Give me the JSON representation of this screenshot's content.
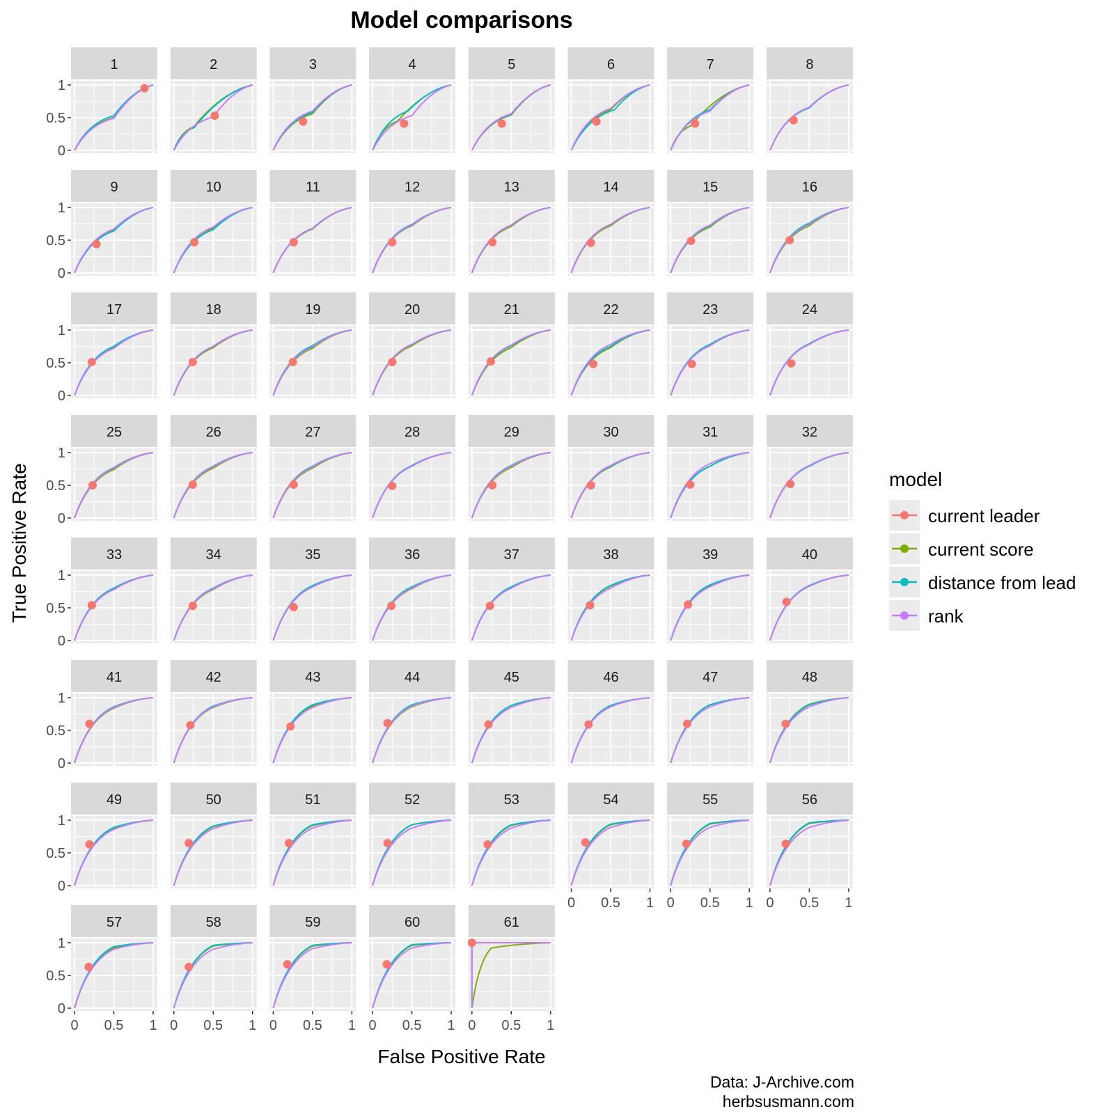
{
  "chart_data": {
    "type": "line",
    "title": "Model comparisons",
    "xlabel": "False Positive Rate",
    "ylabel": "True Positive Rate",
    "xlim": [
      0,
      1
    ],
    "ylim": [
      0,
      1
    ],
    "x_ticks": [
      "0",
      "0.5",
      "1"
    ],
    "y_ticks": [
      "0",
      "0.5",
      "1"
    ],
    "grid": true,
    "facet_columns": 8,
    "legend": {
      "title": "model",
      "position": "right",
      "entries": [
        {
          "label": "current leader",
          "color": "#F8766D",
          "marker": "point"
        },
        {
          "label": "current score",
          "color": "#7CAE00",
          "marker": "line"
        },
        {
          "label": "distance from lead",
          "color": "#00BFC4",
          "marker": "line"
        },
        {
          "label": "rank",
          "color": "#C77CFF",
          "marker": "line"
        }
      ]
    },
    "panels": [
      {
        "label": "1",
        "leader": [
          0.89,
          0.95
        ],
        "score": [
          0.5,
          0.5
        ],
        "dist": [
          0.5,
          0.53
        ],
        "rank": [
          0.5,
          0.49
        ]
      },
      {
        "label": "2",
        "leader": [
          0.52,
          0.53
        ],
        "score": [
          0.25,
          0.36
        ],
        "dist": [
          0.26,
          0.35
        ],
        "rank": [
          0.5,
          0.51
        ]
      },
      {
        "label": "3",
        "leader": [
          0.38,
          0.44
        ],
        "score": [
          0.5,
          0.56
        ],
        "dist": [
          0.5,
          0.58
        ],
        "rank": [
          0.5,
          0.6
        ]
      },
      {
        "label": "4",
        "leader": [
          0.4,
          0.41
        ],
        "score": [
          0.32,
          0.45
        ],
        "dist": [
          0.45,
          0.6
        ],
        "rank": [
          0.5,
          0.53
        ]
      },
      {
        "label": "5",
        "leader": [
          0.38,
          0.41
        ],
        "score": [
          0.5,
          0.54
        ],
        "dist": [
          0.5,
          0.55
        ],
        "rank": [
          0.5,
          0.56
        ]
      },
      {
        "label": "6",
        "leader": [
          0.32,
          0.44
        ],
        "score": [
          0.5,
          0.62
        ],
        "dist": [
          0.55,
          0.62
        ],
        "rank": [
          0.5,
          0.64
        ]
      },
      {
        "label": "7",
        "leader": [
          0.31,
          0.41
        ],
        "score": [
          0.25,
          0.37
        ],
        "dist": [
          0.5,
          0.62
        ],
        "rank": [
          0.5,
          0.6
        ]
      },
      {
        "label": "8",
        "leader": [
          0.3,
          0.46
        ],
        "score": [
          0.5,
          0.66
        ],
        "dist": [
          0.5,
          0.65
        ],
        "rank": [
          0.5,
          0.66
        ]
      },
      {
        "label": "9",
        "leader": [
          0.28,
          0.44
        ],
        "score": [
          0.5,
          0.66
        ],
        "dist": [
          0.5,
          0.64
        ],
        "rank": [
          0.5,
          0.67
        ]
      },
      {
        "label": "10",
        "leader": [
          0.26,
          0.47
        ],
        "score": [
          0.5,
          0.68
        ],
        "dist": [
          0.5,
          0.66
        ],
        "rank": [
          0.5,
          0.7
        ]
      },
      {
        "label": "11",
        "leader": [
          0.26,
          0.47
        ],
        "score": [
          0.5,
          0.67
        ],
        "dist": [
          0.5,
          0.68
        ],
        "rank": [
          0.5,
          0.68
        ]
      },
      {
        "label": "12",
        "leader": [
          0.25,
          0.47
        ],
        "score": [
          0.5,
          0.72
        ],
        "dist": [
          0.5,
          0.74
        ],
        "rank": [
          0.5,
          0.73
        ]
      },
      {
        "label": "13",
        "leader": [
          0.26,
          0.47
        ],
        "score": [
          0.5,
          0.71
        ],
        "dist": [
          0.5,
          0.73
        ],
        "rank": [
          0.5,
          0.73
        ]
      },
      {
        "label": "14",
        "leader": [
          0.25,
          0.46
        ],
        "score": [
          0.5,
          0.72
        ],
        "dist": [
          0.5,
          0.74
        ],
        "rank": [
          0.5,
          0.74
        ]
      },
      {
        "label": "15",
        "leader": [
          0.26,
          0.49
        ],
        "score": [
          0.5,
          0.7
        ],
        "dist": [
          0.5,
          0.72
        ],
        "rank": [
          0.5,
          0.73
        ]
      },
      {
        "label": "16",
        "leader": [
          0.25,
          0.5
        ],
        "score": [
          0.5,
          0.72
        ],
        "dist": [
          0.5,
          0.76
        ],
        "rank": [
          0.5,
          0.74
        ]
      },
      {
        "label": "17",
        "leader": [
          0.22,
          0.51
        ],
        "score": [
          0.5,
          0.73
        ],
        "dist": [
          0.5,
          0.75
        ],
        "rank": [
          0.5,
          0.72
        ]
      },
      {
        "label": "18",
        "leader": [
          0.24,
          0.51
        ],
        "score": [
          0.5,
          0.73
        ],
        "dist": [
          0.5,
          0.75
        ],
        "rank": [
          0.5,
          0.75
        ]
      },
      {
        "label": "19",
        "leader": [
          0.25,
          0.51
        ],
        "score": [
          0.5,
          0.72
        ],
        "dist": [
          0.5,
          0.76
        ],
        "rank": [
          0.5,
          0.74
        ]
      },
      {
        "label": "20",
        "leader": [
          0.25,
          0.51
        ],
        "score": [
          0.5,
          0.76
        ],
        "dist": [
          0.5,
          0.78
        ],
        "rank": [
          0.5,
          0.78
        ]
      },
      {
        "label": "21",
        "leader": [
          0.24,
          0.52
        ],
        "score": [
          0.5,
          0.73
        ],
        "dist": [
          0.5,
          0.76
        ],
        "rank": [
          0.5,
          0.77
        ]
      },
      {
        "label": "22",
        "leader": [
          0.28,
          0.48
        ],
        "score": [
          0.5,
          0.73
        ],
        "dist": [
          0.5,
          0.75
        ],
        "rank": [
          0.5,
          0.78
        ]
      },
      {
        "label": "23",
        "leader": [
          0.27,
          0.48
        ],
        "score": [
          0.5,
          0.76
        ],
        "dist": [
          0.5,
          0.78
        ],
        "rank": [
          0.5,
          0.76
        ]
      },
      {
        "label": "24",
        "leader": [
          0.27,
          0.49
        ],
        "score": [
          0.5,
          0.78
        ],
        "dist": [
          0.5,
          0.79
        ],
        "rank": [
          0.5,
          0.78
        ]
      },
      {
        "label": "25",
        "leader": [
          0.23,
          0.5
        ],
        "score": [
          0.5,
          0.74
        ],
        "dist": [
          0.5,
          0.77
        ],
        "rank": [
          0.5,
          0.76
        ]
      },
      {
        "label": "26",
        "leader": [
          0.24,
          0.51
        ],
        "score": [
          0.5,
          0.76
        ],
        "dist": [
          0.5,
          0.79
        ],
        "rank": [
          0.5,
          0.78
        ]
      },
      {
        "label": "27",
        "leader": [
          0.26,
          0.51
        ],
        "score": [
          0.5,
          0.76
        ],
        "dist": [
          0.5,
          0.79
        ],
        "rank": [
          0.5,
          0.78
        ]
      },
      {
        "label": "28",
        "leader": [
          0.25,
          0.49
        ],
        "score": [
          0.5,
          0.79
        ],
        "dist": [
          0.5,
          0.8
        ],
        "rank": [
          0.5,
          0.79
        ]
      },
      {
        "label": "29",
        "leader": [
          0.26,
          0.5
        ],
        "score": [
          0.5,
          0.77
        ],
        "dist": [
          0.5,
          0.8
        ],
        "rank": [
          0.5,
          0.79
        ]
      },
      {
        "label": "30",
        "leader": [
          0.25,
          0.5
        ],
        "score": [
          0.5,
          0.78
        ],
        "dist": [
          0.5,
          0.79
        ],
        "rank": [
          0.5,
          0.8
        ]
      },
      {
        "label": "31",
        "leader": [
          0.25,
          0.51
        ],
        "score": [
          0.5,
          0.79
        ],
        "dist": [
          0.5,
          0.79
        ],
        "rank": [
          0.5,
          0.83
        ]
      },
      {
        "label": "32",
        "leader": [
          0.26,
          0.52
        ],
        "score": [
          0.5,
          0.8
        ],
        "dist": [
          0.5,
          0.79
        ],
        "rank": [
          0.5,
          0.8
        ]
      },
      {
        "label": "33",
        "leader": [
          0.22,
          0.54
        ],
        "score": [
          0.5,
          0.78
        ],
        "dist": [
          0.5,
          0.8
        ],
        "rank": [
          0.5,
          0.78
        ]
      },
      {
        "label": "34",
        "leader": [
          0.24,
          0.53
        ],
        "score": [
          0.5,
          0.78
        ],
        "dist": [
          0.5,
          0.8
        ],
        "rank": [
          0.5,
          0.79
        ]
      },
      {
        "label": "35",
        "leader": [
          0.26,
          0.51
        ],
        "score": [
          0.5,
          0.82
        ],
        "dist": [
          0.5,
          0.84
        ],
        "rank": [
          0.5,
          0.82
        ]
      },
      {
        "label": "36",
        "leader": [
          0.24,
          0.53
        ],
        "score": [
          0.5,
          0.79
        ],
        "dist": [
          0.5,
          0.82
        ],
        "rank": [
          0.5,
          0.8
        ]
      },
      {
        "label": "37",
        "leader": [
          0.23,
          0.53
        ],
        "score": [
          0.5,
          0.81
        ],
        "dist": [
          0.5,
          0.82
        ],
        "rank": [
          0.5,
          0.8
        ]
      },
      {
        "label": "38",
        "leader": [
          0.24,
          0.54
        ],
        "score": [
          0.5,
          0.83
        ],
        "dist": [
          0.5,
          0.84
        ],
        "rank": [
          0.5,
          0.8
        ]
      },
      {
        "label": "39",
        "leader": [
          0.22,
          0.55
        ],
        "score": [
          0.5,
          0.83
        ],
        "dist": [
          0.5,
          0.85
        ],
        "rank": [
          0.5,
          0.82
        ]
      },
      {
        "label": "40",
        "leader": [
          0.21,
          0.59
        ],
        "score": [
          0.5,
          0.83
        ],
        "dist": [
          0.5,
          0.84
        ],
        "rank": [
          0.5,
          0.83
        ]
      },
      {
        "label": "41",
        "leader": [
          0.19,
          0.6
        ],
        "score": [
          0.5,
          0.84
        ],
        "dist": [
          0.5,
          0.86
        ],
        "rank": [
          0.5,
          0.85
        ]
      },
      {
        "label": "42",
        "leader": [
          0.21,
          0.58
        ],
        "score": [
          0.5,
          0.85
        ],
        "dist": [
          0.5,
          0.87
        ],
        "rank": [
          0.5,
          0.86
        ]
      },
      {
        "label": "43",
        "leader": [
          0.22,
          0.56
        ],
        "score": [
          0.5,
          0.87
        ],
        "dist": [
          0.5,
          0.89
        ],
        "rank": [
          0.5,
          0.85
        ]
      },
      {
        "label": "44",
        "leader": [
          0.19,
          0.61
        ],
        "score": [
          0.5,
          0.86
        ],
        "dist": [
          0.5,
          0.89
        ],
        "rank": [
          0.5,
          0.87
        ]
      },
      {
        "label": "45",
        "leader": [
          0.21,
          0.59
        ],
        "score": [
          0.5,
          0.88
        ],
        "dist": [
          0.5,
          0.88
        ],
        "rank": [
          0.5,
          0.85
        ]
      },
      {
        "label": "46",
        "leader": [
          0.22,
          0.59
        ],
        "score": [
          0.5,
          0.87
        ],
        "dist": [
          0.5,
          0.88
        ],
        "rank": [
          0.5,
          0.86
        ]
      },
      {
        "label": "47",
        "leader": [
          0.21,
          0.6
        ],
        "score": [
          0.5,
          0.89
        ],
        "dist": [
          0.5,
          0.89
        ],
        "rank": [
          0.5,
          0.86
        ]
      },
      {
        "label": "48",
        "leader": [
          0.2,
          0.6
        ],
        "score": [
          0.5,
          0.9
        ],
        "dist": [
          0.5,
          0.89
        ],
        "rank": [
          0.5,
          0.86
        ]
      },
      {
        "label": "49",
        "leader": [
          0.19,
          0.63
        ],
        "score": [
          0.5,
          0.88
        ],
        "dist": [
          0.5,
          0.89
        ],
        "rank": [
          0.5,
          0.86
        ]
      },
      {
        "label": "50",
        "leader": [
          0.19,
          0.65
        ],
        "score": [
          0.5,
          0.9
        ],
        "dist": [
          0.5,
          0.91
        ],
        "rank": [
          0.5,
          0.87
        ]
      },
      {
        "label": "51",
        "leader": [
          0.2,
          0.65
        ],
        "score": [
          0.5,
          0.92
        ],
        "dist": [
          0.5,
          0.93
        ],
        "rank": [
          0.5,
          0.88
        ]
      },
      {
        "label": "52",
        "leader": [
          0.19,
          0.65
        ],
        "score": [
          0.5,
          0.93
        ],
        "dist": [
          0.5,
          0.93
        ],
        "rank": [
          0.5,
          0.88
        ]
      },
      {
        "label": "53",
        "leader": [
          0.2,
          0.63
        ],
        "score": [
          0.5,
          0.92
        ],
        "dist": [
          0.5,
          0.93
        ],
        "rank": [
          0.5,
          0.88
        ]
      },
      {
        "label": "54",
        "leader": [
          0.18,
          0.66
        ],
        "score": [
          0.5,
          0.93
        ],
        "dist": [
          0.5,
          0.94
        ],
        "rank": [
          0.5,
          0.89
        ]
      },
      {
        "label": "55",
        "leader": [
          0.2,
          0.64
        ],
        "score": [
          0.5,
          0.94
        ],
        "dist": [
          0.5,
          0.95
        ],
        "rank": [
          0.5,
          0.89
        ]
      },
      {
        "label": "56",
        "leader": [
          0.2,
          0.64
        ],
        "score": [
          0.5,
          0.95
        ],
        "dist": [
          0.5,
          0.96
        ],
        "rank": [
          0.5,
          0.89
        ]
      },
      {
        "label": "57",
        "leader": [
          0.18,
          0.63
        ],
        "score": [
          0.5,
          0.92
        ],
        "dist": [
          0.5,
          0.94
        ],
        "rank": [
          0.5,
          0.9
        ]
      },
      {
        "label": "58",
        "leader": [
          0.19,
          0.63
        ],
        "score": [
          0.5,
          0.95
        ],
        "dist": [
          0.5,
          0.96
        ],
        "rank": [
          0.5,
          0.9
        ]
      },
      {
        "label": "59",
        "leader": [
          0.18,
          0.67
        ],
        "score": [
          0.5,
          0.95
        ],
        "dist": [
          0.5,
          0.96
        ],
        "rank": [
          0.5,
          0.91
        ]
      },
      {
        "label": "60",
        "leader": [
          0.18,
          0.67
        ],
        "score": [
          0.5,
          0.96
        ],
        "dist": [
          0.5,
          0.97
        ],
        "rank": [
          0.5,
          0.92
        ]
      },
      {
        "label": "61",
        "leader": [
          0.0,
          1.0
        ],
        "score": [
          0.25,
          0.92
        ],
        "dist": [
          0.0,
          1.0
        ],
        "rank": [
          0.0,
          1.0
        ]
      }
    ],
    "bottom_axis_panels": [
      "54",
      "55",
      "56",
      "57",
      "58",
      "59",
      "60",
      "61"
    ]
  },
  "caption": {
    "line1": "Data: J-Archive.com",
    "line2": "herbsusmann.com"
  },
  "colors": {
    "panel_background": "#EBEBEB",
    "strip_background": "#D9D9D9",
    "grid": "#FFFFFF"
  }
}
